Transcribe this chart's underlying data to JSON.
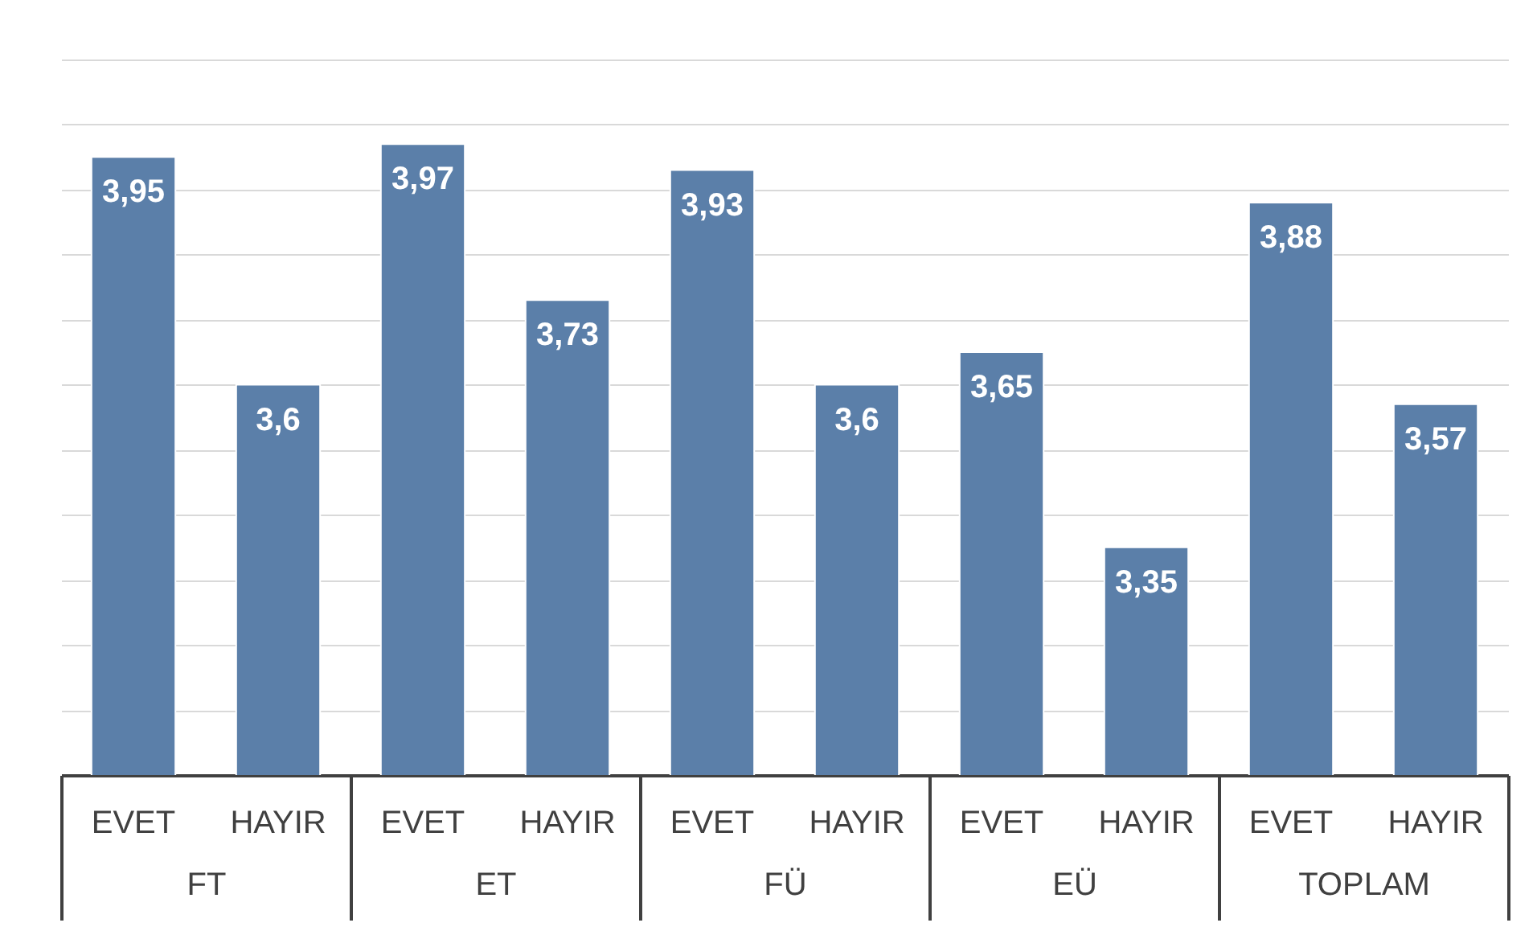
{
  "chart_data": {
    "type": "bar",
    "categories": [
      "FT",
      "ET",
      "FÜ",
      "EÜ",
      "TOPLAM"
    ],
    "series": [
      {
        "name": "EVET",
        "color": "#5b7fa9",
        "values": [
          3.95,
          3.97,
          3.93,
          3.65,
          3.88
        ],
        "value_labels": [
          "3,95",
          "3,97",
          "3,93",
          "3,65",
          "3,88"
        ]
      },
      {
        "name": "HAYIR",
        "color": "#5b7fa9",
        "values": [
          3.6,
          3.73,
          3.6,
          3.35,
          3.57
        ],
        "value_labels": [
          "3,6",
          "3,73",
          "3,6",
          "3,35",
          "3,57"
        ]
      }
    ],
    "ylim": [
      3,
      4.1
    ],
    "yticks": [
      {
        "value": 3.1,
        "label": null
      },
      {
        "value": 3.2,
        "label": null
      },
      {
        "value": 3.3,
        "label": null
      },
      {
        "value": 3.4,
        "label": null
      },
      {
        "value": 3.5,
        "label": null
      },
      {
        "value": 3.6,
        "label": null
      },
      {
        "value": 3.7,
        "label": null
      },
      {
        "value": 3.8,
        "label": null
      },
      {
        "value": 3.9,
        "label": null
      },
      {
        "value": 4.0,
        "label": null
      },
      {
        "value": 4.1,
        "label": null
      }
    ],
    "grid": "y",
    "tick_labels": "x",
    "legend": false
  }
}
